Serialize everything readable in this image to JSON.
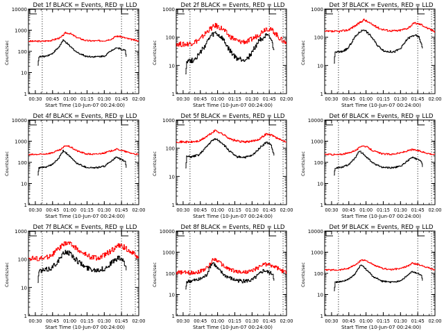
{
  "figure": {
    "layout": "3x3 grid of light-curve plots",
    "x_tick_labels": [
      "00:30",
      "00:45",
      "01:00",
      "01:15",
      "01:30",
      "01:45",
      "02:00"
    ],
    "x_label": "Start Time (10-Jun-07 00:24:00)",
    "y_label": "Counts/sec",
    "colors": {
      "events": "#000000",
      "lld": "#ff0000",
      "axes": "#000000"
    }
  },
  "chart_data": [
    {
      "type": "line",
      "title": "Det 1f BLACK = Events, RED = LLD",
      "xlabel": "Start Time (10-Jun-07 00:24:00)",
      "ylabel": "Counts/sec",
      "yscale": "log",
      "ylim": [
        1,
        10000
      ],
      "y_tick_labels": [
        "1",
        "10",
        "100",
        "1000",
        "10000"
      ],
      "xlim_minutes": [
        0,
        96
      ],
      "x_tick_labels": [
        "00:30",
        "00:45",
        "01:00",
        "01:15",
        "01:30",
        "01:45",
        "02:00"
      ],
      "dotted_lines_minutes": [
        12,
        81,
        93
      ],
      "markers": [
        "start-bracket",
        "end-bracket"
      ],
      "series": [
        {
          "name": "LLD",
          "color": "#ff0000",
          "x": [
            0,
            12,
            20,
            28,
            32,
            36,
            42,
            50,
            58,
            66,
            72,
            76,
            80,
            86,
            92,
            96
          ],
          "y": [
            300,
            300,
            330,
            450,
            750,
            700,
            450,
            320,
            310,
            320,
            380,
            520,
            500,
            400,
            340,
            300
          ]
        },
        {
          "name": "Events",
          "color": "#000000",
          "x": [
            8,
            9,
            14,
            20,
            26,
            30,
            32,
            36,
            42,
            50,
            58,
            66,
            72,
            76,
            80,
            84,
            85
          ],
          "y": [
            22,
            55,
            58,
            75,
            150,
            330,
            280,
            170,
            90,
            58,
            55,
            60,
            110,
            150,
            130,
            110,
            55
          ]
        }
      ]
    },
    {
      "type": "line",
      "title": "Det 2f BLACK = Events, RED = LLD",
      "xlabel": "Start Time (10-Jun-07 00:24:00)",
      "ylabel": "Counts/sec",
      "yscale": "log",
      "ylim": [
        1,
        1000
      ],
      "y_tick_labels": [
        "1",
        "10",
        "100",
        "1000"
      ],
      "xlim_minutes": [
        0,
        96
      ],
      "x_tick_labels": [
        "00:30",
        "00:45",
        "01:00",
        "01:15",
        "01:30",
        "01:45",
        "02:00"
      ],
      "dotted_lines_minutes": [
        12,
        81,
        93
      ],
      "markers": [
        "start-bracket",
        "end-bracket"
      ],
      "series": [
        {
          "name": "LLD",
          "color": "#ff0000",
          "x": [
            0,
            6,
            12,
            20,
            28,
            34,
            40,
            46,
            54,
            62,
            70,
            78,
            84,
            90,
            96
          ],
          "y": [
            60,
            55,
            60,
            80,
            180,
            260,
            200,
            110,
            70,
            70,
            110,
            210,
            170,
            90,
            60
          ]
        },
        {
          "name": "Events",
          "color": "#000000",
          "x": [
            8,
            9,
            14,
            20,
            26,
            30,
            34,
            40,
            46,
            52,
            58,
            62,
            66,
            72,
            78,
            82,
            85
          ],
          "y": [
            5,
            15,
            15,
            25,
            60,
            110,
            140,
            90,
            35,
            18,
            16,
            18,
            30,
            80,
            110,
            90,
            35
          ]
        }
      ]
    },
    {
      "type": "line",
      "title": "Det 3f BLACK = Events, RED = LLD",
      "xlabel": "Start Time (10-Jun-07 00:24:00)",
      "ylabel": "Counts/sec",
      "yscale": "log",
      "ylim": [
        1,
        1000
      ],
      "y_tick_labels": [
        "1",
        "10",
        "100",
        "1000"
      ],
      "xlim_minutes": [
        0,
        96
      ],
      "x_tick_labels": [
        "00:30",
        "00:45",
        "01:00",
        "01:15",
        "01:30",
        "01:45",
        "02:00"
      ],
      "dotted_lines_minutes": [
        12,
        81,
        93
      ],
      "markers": [
        "start-bracket",
        "end-bracket"
      ],
      "series": [
        {
          "name": "LLD",
          "color": "#ff0000",
          "x": [
            0,
            12,
            20,
            28,
            34,
            40,
            48,
            56,
            64,
            72,
            78,
            84,
            90,
            96
          ],
          "y": [
            160,
            160,
            180,
            280,
            420,
            300,
            200,
            170,
            170,
            210,
            320,
            280,
            200,
            160
          ]
        },
        {
          "name": "Events",
          "color": "#000000",
          "x": [
            8,
            9,
            14,
            20,
            26,
            30,
            34,
            40,
            46,
            52,
            60,
            66,
            72,
            78,
            82,
            85
          ],
          "y": [
            12,
            30,
            30,
            40,
            100,
            150,
            190,
            110,
            50,
            32,
            30,
            40,
            90,
            120,
            100,
            40
          ]
        }
      ]
    },
    {
      "type": "line",
      "title": "Det 4f BLACK = Events, RED = LLD",
      "xlabel": "Start Time (10-Jun-07 00:24:00)",
      "ylabel": "Counts/sec",
      "yscale": "log",
      "ylim": [
        1,
        10000
      ],
      "y_tick_labels": [
        "1",
        "10",
        "100",
        "1000",
        "10000"
      ],
      "xlim_minutes": [
        0,
        96
      ],
      "x_tick_labels": [
        "00:30",
        "00:45",
        "01:00",
        "01:15",
        "01:30",
        "01:45",
        "02:00"
      ],
      "dotted_lines_minutes": [
        12,
        81,
        93
      ],
      "markers": [
        "start-bracket",
        "end-bracket"
      ],
      "series": [
        {
          "name": "LLD",
          "color": "#ff0000",
          "x": [
            0,
            12,
            20,
            28,
            32,
            36,
            42,
            50,
            58,
            66,
            72,
            76,
            80,
            86,
            92,
            96
          ],
          "y": [
            230,
            240,
            280,
            400,
            620,
            550,
            350,
            250,
            240,
            280,
            350,
            420,
            380,
            300,
            250,
            230
          ]
        },
        {
          "name": "Events",
          "color": "#000000",
          "x": [
            8,
            9,
            14,
            20,
            26,
            30,
            32,
            36,
            42,
            50,
            58,
            66,
            72,
            76,
            80,
            84,
            85
          ],
          "y": [
            25,
            55,
            58,
            75,
            150,
            350,
            300,
            180,
            90,
            58,
            55,
            65,
            120,
            170,
            140,
            110,
            55
          ]
        }
      ]
    },
    {
      "type": "line",
      "title": "Det 5f BLACK = Events, RED = LLD",
      "xlabel": "Start Time (10-Jun-07 00:24:00)",
      "ylabel": "Counts/sec",
      "yscale": "log",
      "ylim": [
        1,
        1000
      ],
      "y_tick_labels": [
        "1",
        "10",
        "100",
        "1000"
      ],
      "xlim_minutes": [
        0,
        96
      ],
      "x_tick_labels": [
        "00:30",
        "00:45",
        "01:00",
        "01:15",
        "01:30",
        "01:45",
        "02:00"
      ],
      "dotted_lines_minutes": [
        12,
        81,
        93
      ],
      "markers": [
        "start-bracket",
        "end-bracket"
      ],
      "series": [
        {
          "name": "LLD",
          "color": "#ff0000",
          "x": [
            0,
            12,
            20,
            28,
            34,
            40,
            48,
            56,
            64,
            72,
            78,
            84,
            90,
            96
          ],
          "y": [
            170,
            165,
            180,
            290,
            430,
            320,
            200,
            170,
            170,
            210,
            320,
            280,
            200,
            170
          ]
        },
        {
          "name": "Events",
          "color": "#000000",
          "x": [
            8,
            9,
            14,
            20,
            26,
            30,
            34,
            40,
            46,
            52,
            60,
            66,
            72,
            78,
            82,
            85
          ],
          "y": [
            20,
            50,
            50,
            60,
            110,
            170,
            220,
            150,
            80,
            50,
            48,
            55,
            100,
            160,
            140,
            55
          ]
        }
      ]
    },
    {
      "type": "line",
      "title": "Det 6f BLACK = Events, RED = LLD",
      "xlabel": "Start Time (10-Jun-07 00:24:00)",
      "ylabel": "Counts/sec",
      "yscale": "log",
      "ylim": [
        1,
        10000
      ],
      "y_tick_labels": [
        "1",
        "10",
        "100",
        "1000",
        "10000"
      ],
      "xlim_minutes": [
        0,
        96
      ],
      "x_tick_labels": [
        "00:30",
        "00:45",
        "01:00",
        "01:15",
        "01:30",
        "01:45",
        "02:00"
      ],
      "dotted_lines_minutes": [
        12,
        81,
        93
      ],
      "markers": [
        "start-bracket",
        "end-bracket"
      ],
      "series": [
        {
          "name": "LLD",
          "color": "#ff0000",
          "x": [
            0,
            12,
            20,
            28,
            32,
            36,
            42,
            50,
            58,
            66,
            72,
            76,
            80,
            86,
            92,
            96
          ],
          "y": [
            240,
            230,
            270,
            400,
            620,
            550,
            350,
            250,
            240,
            280,
            350,
            400,
            370,
            300,
            250,
            230
          ]
        },
        {
          "name": "Events",
          "color": "#000000",
          "x": [
            8,
            9,
            14,
            20,
            26,
            30,
            32,
            36,
            42,
            50,
            58,
            66,
            72,
            76,
            80,
            84,
            85
          ],
          "y": [
            25,
            55,
            58,
            75,
            150,
            340,
            290,
            180,
            90,
            58,
            55,
            65,
            120,
            170,
            140,
            110,
            60
          ]
        }
      ]
    },
    {
      "type": "line",
      "title": "Det 7f BLACK = Events, RED = LLD",
      "xlabel": "Start Time (10-Jun-07 00:24:00)",
      "ylabel": "Counts/sec",
      "yscale": "log",
      "ylim": [
        1,
        1000
      ],
      "y_tick_labels": [
        "1",
        "10",
        "100",
        "1000"
      ],
      "xlim_minutes": [
        0,
        96
      ],
      "x_tick_labels": [
        "00:30",
        "00:45",
        "01:00",
        "01:15",
        "01:30",
        "01:45",
        "02:00"
      ],
      "dotted_lines_minutes": [
        12,
        81,
        93
      ],
      "markers": [
        "start-bracket",
        "end-bracket"
      ],
      "series": [
        {
          "name": "LLD",
          "color": "#ff0000",
          "x": [
            0,
            6,
            12,
            20,
            28,
            34,
            40,
            46,
            54,
            62,
            70,
            78,
            84,
            90,
            96
          ],
          "y": [
            110,
            105,
            105,
            140,
            280,
            400,
            280,
            170,
            120,
            110,
            180,
            300,
            260,
            170,
            115
          ]
        },
        {
          "name": "Events",
          "color": "#000000",
          "x": [
            8,
            9,
            14,
            20,
            26,
            30,
            32,
            36,
            42,
            50,
            58,
            66,
            72,
            78,
            82,
            85
          ],
          "y": [
            15,
            38,
            40,
            50,
            90,
            150,
            190,
            160,
            90,
            50,
            42,
            45,
            75,
            110,
            95,
            40
          ]
        }
      ]
    },
    {
      "type": "line",
      "title": "Det 8f BLACK = Events, RED = LLD",
      "xlabel": "Start Time (10-Jun-07 00:24:00)",
      "ylabel": "Counts/sec",
      "yscale": "log",
      "ylim": [
        1,
        10000
      ],
      "y_tick_labels": [
        "1",
        "10",
        "100",
        "1000",
        "10000"
      ],
      "xlim_minutes": [
        0,
        96
      ],
      "x_tick_labels": [
        "00:30",
        "00:45",
        "01:00",
        "01:15",
        "01:30",
        "01:45",
        "02:00"
      ],
      "dotted_lines_minutes": [
        12,
        81,
        93
      ],
      "markers": [
        "start-bracket",
        "end-bracket"
      ],
      "series": [
        {
          "name": "LLD",
          "color": "#ff0000",
          "x": [
            0,
            6,
            12,
            20,
            28,
            32,
            36,
            42,
            50,
            58,
            66,
            72,
            76,
            80,
            86,
            92,
            96
          ],
          "y": [
            110,
            110,
            105,
            120,
            200,
            500,
            400,
            200,
            130,
            110,
            130,
            200,
            280,
            260,
            200,
            130,
            110
          ]
        },
        {
          "name": "Events",
          "color": "#000000",
          "x": [
            8,
            9,
            14,
            20,
            26,
            30,
            32,
            36,
            42,
            50,
            58,
            66,
            72,
            76,
            80,
            84,
            85
          ],
          "y": [
            18,
            40,
            45,
            50,
            80,
            250,
            320,
            160,
            80,
            50,
            42,
            48,
            90,
            140,
            110,
            95,
            45
          ]
        }
      ]
    },
    {
      "type": "line",
      "title": "Det 9f BLACK = Events, RED = LLD",
      "xlabel": "Start Time (10-Jun-07 00:24:00)",
      "ylabel": "Counts/sec",
      "yscale": "log",
      "ylim": [
        1,
        10000
      ],
      "y_tick_labels": [
        "1",
        "10",
        "100",
        "1000",
        "10000"
      ],
      "xlim_minutes": [
        0,
        96
      ],
      "x_tick_labels": [
        "00:30",
        "00:45",
        "01:00",
        "01:15",
        "01:30",
        "01:45",
        "02:00"
      ],
      "dotted_lines_minutes": [
        12,
        81,
        93
      ],
      "markers": [
        "start-bracket",
        "end-bracket"
      ],
      "series": [
        {
          "name": "LLD",
          "color": "#ff0000",
          "x": [
            0,
            12,
            20,
            28,
            32,
            36,
            42,
            50,
            58,
            66,
            72,
            76,
            80,
            86,
            92,
            96
          ],
          "y": [
            145,
            145,
            170,
            280,
            440,
            400,
            250,
            170,
            150,
            170,
            220,
            300,
            270,
            220,
            170,
            145
          ]
        },
        {
          "name": "Events",
          "color": "#000000",
          "x": [
            8,
            9,
            14,
            20,
            26,
            30,
            32,
            36,
            42,
            50,
            58,
            66,
            72,
            76,
            80,
            84,
            85
          ],
          "y": [
            15,
            38,
            40,
            50,
            90,
            200,
            250,
            150,
            70,
            42,
            38,
            45,
            80,
            120,
            100,
            85,
            45
          ]
        }
      ]
    }
  ]
}
